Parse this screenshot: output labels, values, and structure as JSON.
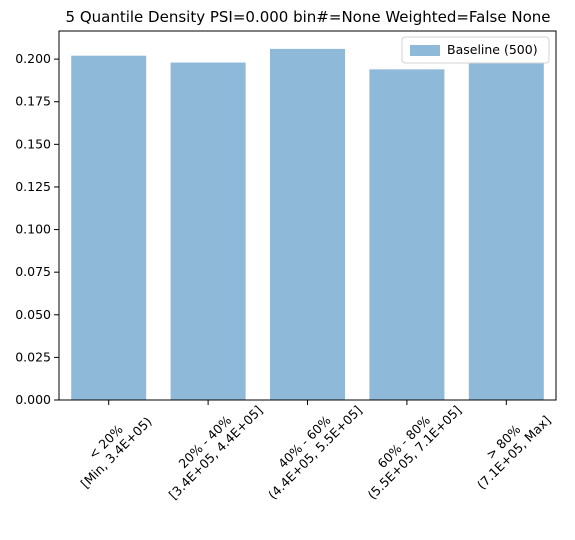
{
  "chart_data": {
    "type": "bar",
    "title": "5 Quantile Density PSI=0.000 bin#=None Weighted=False None",
    "xlabel": "",
    "ylabel": "",
    "categories": [
      [
        "< 20%",
        "[Min, 3.4E+05)"
      ],
      [
        "20% - 40%",
        "[3.4E+05, 4.4E+05]"
      ],
      [
        "40% - 60%",
        "(4.4E+05, 5.5E+05]"
      ],
      [
        "60% - 80%",
        "(5.5E+05, 7.1E+05]"
      ],
      [
        "> 80%",
        "(7.1E+05, Max]"
      ]
    ],
    "series": [
      {
        "name": "Baseline (500)",
        "values": [
          0.202,
          0.198,
          0.206,
          0.194,
          0.2
        ],
        "color": "#8fb9d9"
      }
    ],
    "ylim": [
      0,
      0.2165
    ],
    "yticks": [
      "0.000",
      "0.025",
      "0.050",
      "0.075",
      "0.100",
      "0.125",
      "0.150",
      "0.175",
      "0.200"
    ],
    "legend_position": "top-right",
    "grid": false
  }
}
